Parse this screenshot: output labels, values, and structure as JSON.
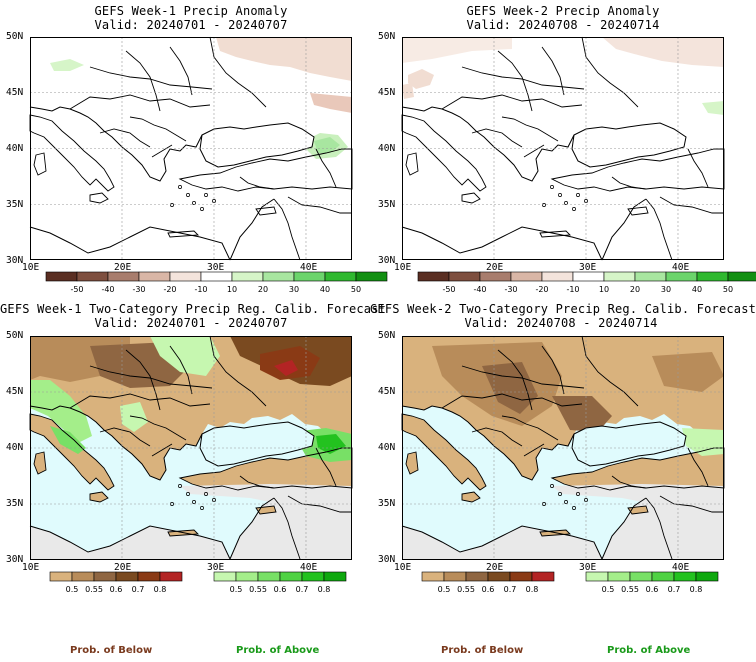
{
  "panels": [
    {
      "id": "p1",
      "title_line1": "GEFS Week-1 Precip Anomaly",
      "title_line2": "Valid: 20240701 - 20240707"
    },
    {
      "id": "p2",
      "title_line1": "GEFS Week-2 Precip Anomaly",
      "title_line2": "Valid: 20240708 - 20240714"
    },
    {
      "id": "p3",
      "title_line1": "GEFS Week-1 Two-Category Precip Reg. Calib. Forecast",
      "title_line2": "Valid: 20240701 - 20240707"
    },
    {
      "id": "p4",
      "title_line1": "GEFS Week-2 Two-Category Precip Reg. Calib. Forecast",
      "title_line2": "Valid: 20240708 - 20240714"
    }
  ],
  "axes": {
    "lat_labels": [
      "50N",
      "45N",
      "40N",
      "35N",
      "30N"
    ],
    "lon_labels": [
      "10E",
      "20E",
      "30E",
      "40E"
    ]
  },
  "anomaly_colorbar": {
    "labels": [
      "-50",
      "-40",
      "-30",
      "-20",
      "-10",
      "10",
      "20",
      "30",
      "40",
      "50"
    ],
    "colors": [
      "#5a2e22",
      "#7e4f3f",
      "#a87d6d",
      "#d9b6a6",
      "#f4e4dc",
      "#ffffff",
      "#d6f5c8",
      "#a8e6a0",
      "#6bd46b",
      "#2fb82f",
      "#128f12"
    ]
  },
  "prob_colorbar_below": {
    "labels": [
      "0.5",
      "0.55",
      "0.6",
      "0.7",
      "0.8"
    ],
    "colors": [
      "#d9b27d",
      "#b88c5a",
      "#8f6642",
      "#7a4a20",
      "#8a3a15",
      "#b32424"
    ]
  },
  "prob_colorbar_above": {
    "labels": [
      "0.5",
      "0.55",
      "0.6",
      "0.7",
      "0.8"
    ],
    "colors": [
      "#c6f7b0",
      "#a4ee8a",
      "#78e066",
      "#4fd243",
      "#23c21f",
      "#0ea80e"
    ]
  },
  "footer": {
    "below_label": "Prob. of Below",
    "above_label": "Prob. of Above",
    "below_color": "#7a3a1e",
    "above_color": "#1a9a1a"
  },
  "colors": {
    "sea": "#e0fbfd",
    "no_forecast": "#e9e9e9",
    "coast": "#000000",
    "grid": "#9a9a9a"
  }
}
